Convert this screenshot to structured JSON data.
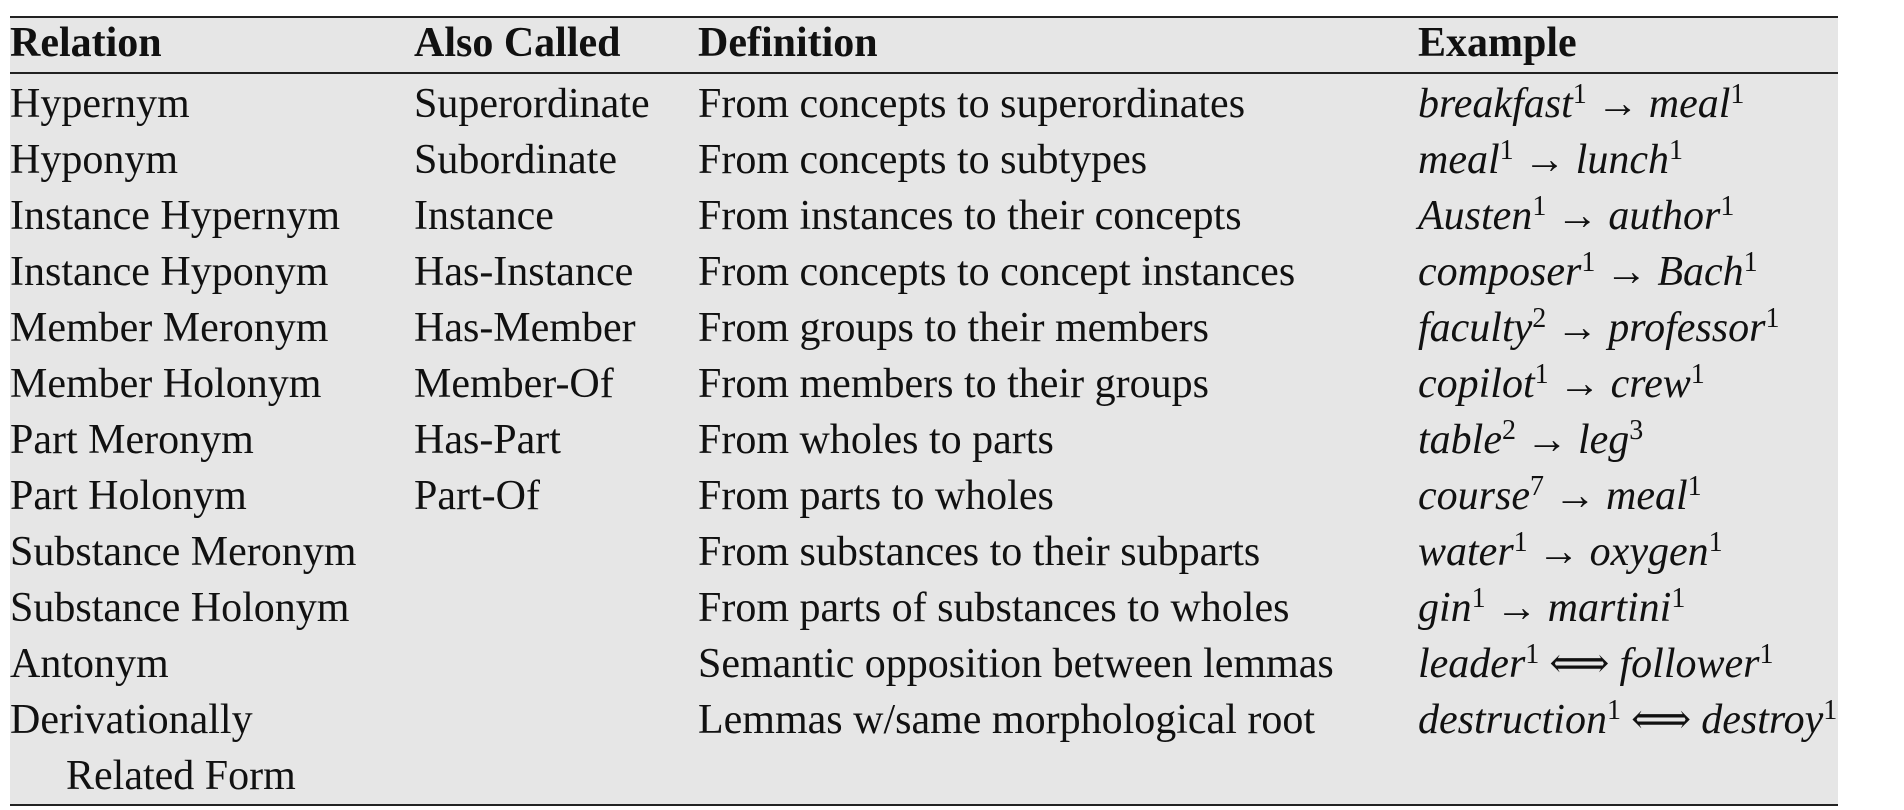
{
  "table": {
    "headers": [
      "Relation",
      "Also Called",
      "Definition",
      "Example"
    ],
    "rows": [
      {
        "relation": "Hypernym",
        "also": "Superordinate",
        "definition": "From concepts to superordinates",
        "ex_from": "breakfast",
        "ex_from_sup": "1",
        "arrow": "→",
        "ex_to": "meal",
        "ex_to_sup": "1"
      },
      {
        "relation": "Hyponym",
        "also": "Subordinate",
        "definition": "From concepts to subtypes",
        "ex_from": "meal",
        "ex_from_sup": "1",
        "arrow": "→",
        "ex_to": "lunch",
        "ex_to_sup": "1"
      },
      {
        "relation": "Instance Hypernym",
        "also": "Instance",
        "definition": "From instances to their concepts",
        "ex_from": "Austen",
        "ex_from_sup": "1",
        "arrow": "→",
        "ex_to": "author",
        "ex_to_sup": "1"
      },
      {
        "relation": "Instance Hyponym",
        "also": "Has-Instance",
        "definition": "From concepts to concept instances",
        "ex_from": "composer",
        "ex_from_sup": "1",
        "arrow": "→",
        "ex_to": "Bach",
        "ex_to_sup": "1"
      },
      {
        "relation": "Member Meronym",
        "also": "Has-Member",
        "definition": "From groups to their members",
        "ex_from": "faculty",
        "ex_from_sup": "2",
        "arrow": "→",
        "ex_to": "professor",
        "ex_to_sup": "1"
      },
      {
        "relation": "Member Holonym",
        "also": "Member-Of",
        "definition": "From members to their groups",
        "ex_from": "copilot",
        "ex_from_sup": "1",
        "arrow": "→",
        "ex_to": "crew",
        "ex_to_sup": "1"
      },
      {
        "relation": "Part Meronym",
        "also": "Has-Part",
        "definition": "From wholes to parts",
        "ex_from": "table",
        "ex_from_sup": "2",
        "arrow": "→",
        "ex_to": "leg",
        "ex_to_sup": "3"
      },
      {
        "relation": "Part Holonym",
        "also": "Part-Of",
        "definition": "From parts to wholes",
        "ex_from": "course",
        "ex_from_sup": "7",
        "arrow": "→",
        "ex_to": "meal",
        "ex_to_sup": "1"
      },
      {
        "relation": "Substance Meronym",
        "also": "",
        "definition": "From substances to their subparts",
        "ex_from": "water",
        "ex_from_sup": "1",
        "arrow": "→",
        "ex_to": "oxygen",
        "ex_to_sup": "1"
      },
      {
        "relation": "Substance Holonym",
        "also": "",
        "definition": "From parts of substances to wholes",
        "ex_from": "gin",
        "ex_from_sup": "1",
        "arrow": "→",
        "ex_to": "martini",
        "ex_to_sup": "1"
      },
      {
        "relation": "Antonym",
        "also": "",
        "definition": "Semantic opposition between lemmas",
        "ex_from": "leader",
        "ex_from_sup": "1",
        "arrow": "⟺",
        "ex_to": "follower",
        "ex_to_sup": "1"
      },
      {
        "relation": "Derivationally",
        "relation_cont": "Related Form",
        "also": "",
        "definition": "Lemmas w/same morphological root",
        "ex_from": "destruction",
        "ex_from_sup": "1",
        "arrow": "⟺",
        "ex_to": "destroy",
        "ex_to_sup": "1"
      }
    ]
  }
}
